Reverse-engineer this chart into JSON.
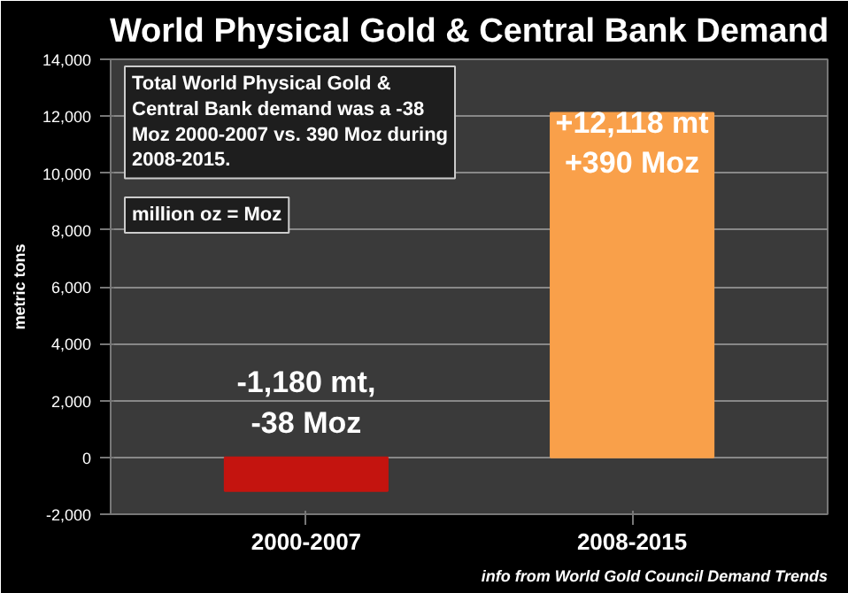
{
  "chart_data": {
    "type": "bar",
    "title": "World Physical Gold & Central Bank Demand",
    "ylabel": "metric tons",
    "categories": [
      "2000-2007",
      "2008-2015"
    ],
    "values": [
      -1180,
      12118
    ],
    "colors": [
      "#c4140f",
      "#f9a04a"
    ],
    "value_labels": [
      "-1,180 mt,\n-38 Moz",
      "+12,118 mt\n+390 Moz"
    ],
    "ylim": [
      -2000,
      14000
    ],
    "yticks": [
      {
        "value": -2000,
        "label": "-2,000"
      },
      0,
      {
        "value": 2000,
        "label": "2,000"
      },
      {
        "value": 4000,
        "label": "4,000"
      },
      {
        "value": 6000,
        "label": "6,000"
      },
      {
        "value": 8000,
        "label": "8,000"
      },
      {
        "value": 10000,
        "label": "10,000"
      },
      {
        "value": 12000,
        "label": "12,000"
      },
      {
        "value": 14000,
        "label": "14,000"
      }
    ],
    "grid": "y",
    "annotations": [
      "Total World Physical Gold & Central Bank demand was a -38 Moz 2000-2007 vs. 390 Moz during 2008-2015.",
      "million oz = Moz",
      "info from World Gold Council Demand Trends"
    ]
  }
}
